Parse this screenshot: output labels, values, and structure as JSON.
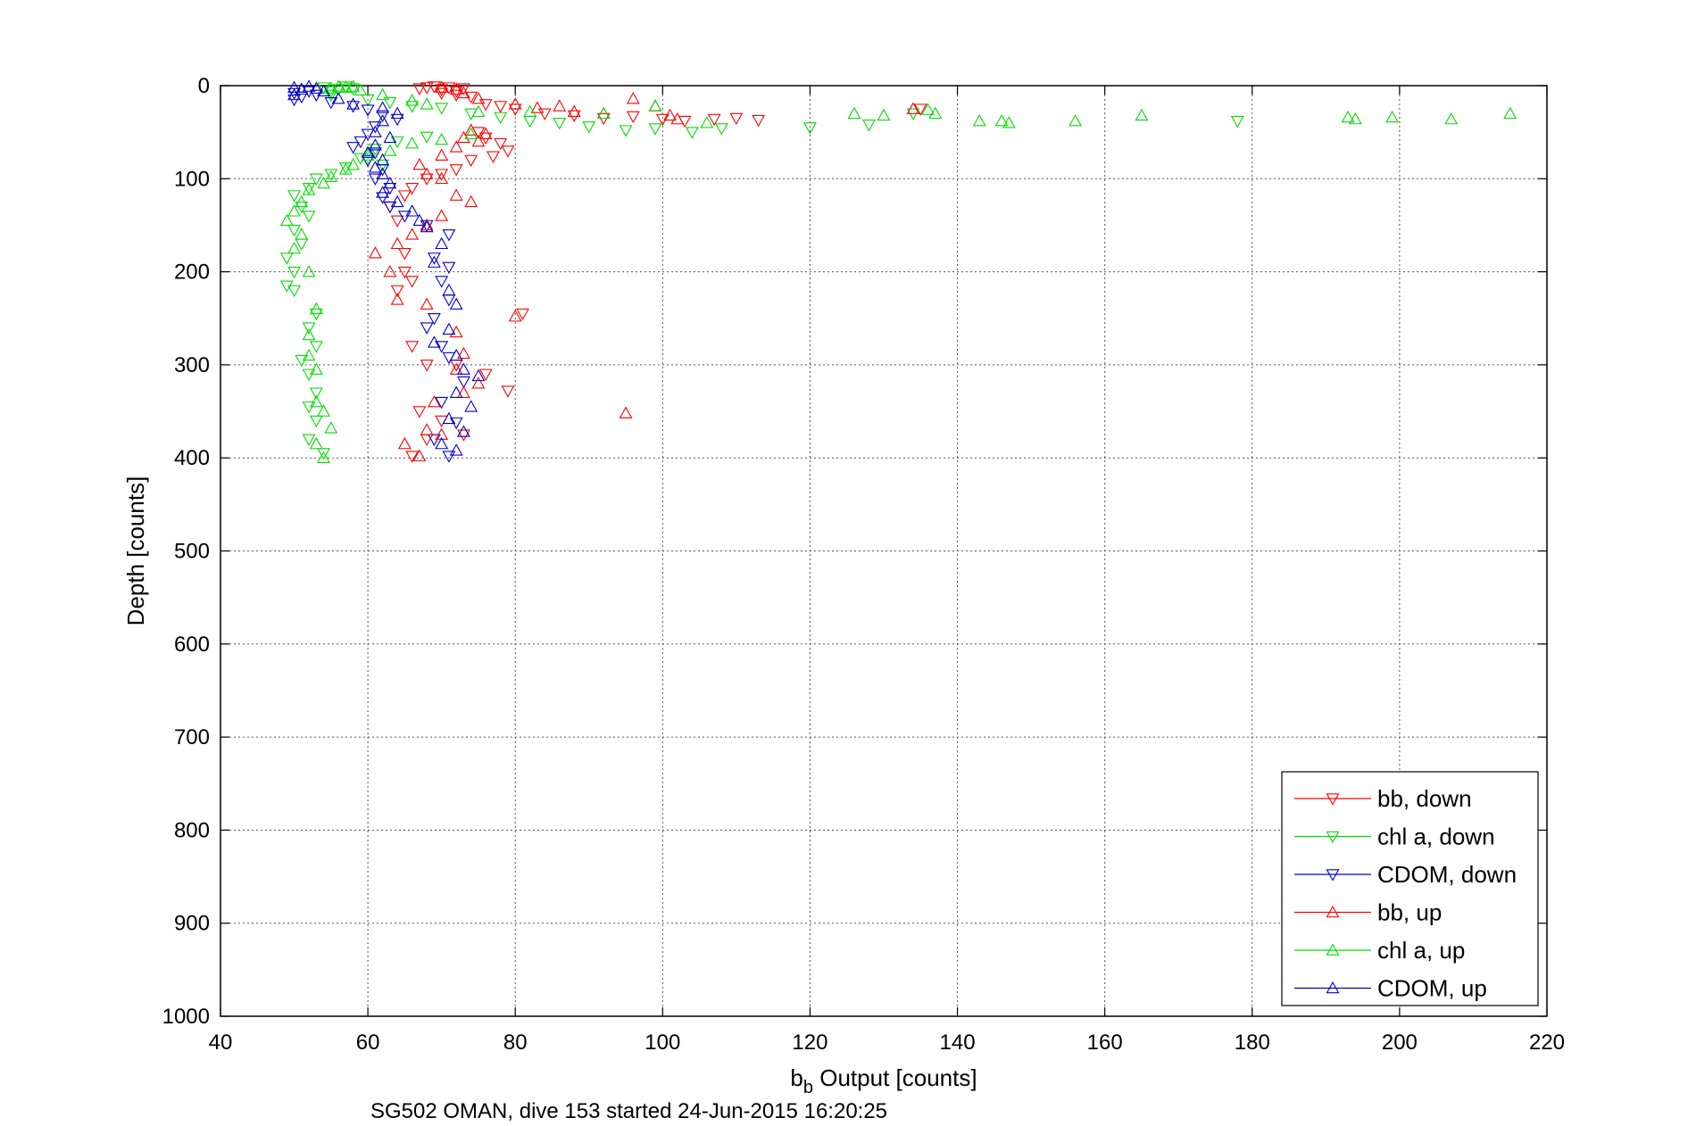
{
  "chart_data": {
    "type": "scatter",
    "xlabel_main": "b",
    "xlabel_sub": "b",
    "xlabel_rest": " Output [counts]",
    "ylabel": "Depth [counts]",
    "caption": "SG502 OMAN, dive 153 started 24-Jun-2015 16:20:25",
    "xlim": [
      40,
      220
    ],
    "ylim": [
      0,
      1000
    ],
    "y_reversed": true,
    "grid": true,
    "legend_position": "bottom-right",
    "x_ticks": [
      "40",
      "60",
      "80",
      "100",
      "120",
      "140",
      "160",
      "180",
      "200",
      "220"
    ],
    "y_ticks": [
      "0",
      "100",
      "200",
      "300",
      "400",
      "500",
      "600",
      "700",
      "800",
      "900",
      "1000"
    ],
    "series": [
      {
        "name": "bb, down",
        "color": "#ff0000",
        "marker": "triangle-down",
        "points": [
          [
            67,
            3
          ],
          [
            68,
            2
          ],
          [
            69,
            1
          ],
          [
            70,
            4
          ],
          [
            71,
            2
          ],
          [
            72,
            6
          ],
          [
            73,
            3
          ],
          [
            70,
            8
          ],
          [
            72,
            10
          ],
          [
            74,
            12
          ],
          [
            76,
            20
          ],
          [
            78,
            22
          ],
          [
            80,
            25
          ],
          [
            84,
            30
          ],
          [
            88,
            32
          ],
          [
            92,
            35
          ],
          [
            96,
            33
          ],
          [
            100,
            36
          ],
          [
            103,
            38
          ],
          [
            107,
            36
          ],
          [
            110,
            35
          ],
          [
            113,
            37
          ],
          [
            135,
            25
          ],
          [
            75,
            50
          ],
          [
            76,
            56
          ],
          [
            78,
            62
          ],
          [
            79,
            70
          ],
          [
            77,
            76
          ],
          [
            74,
            80
          ],
          [
            72,
            90
          ],
          [
            70,
            95
          ],
          [
            68,
            100
          ],
          [
            66,
            110
          ],
          [
            65,
            118
          ],
          [
            63,
            130
          ],
          [
            64,
            145
          ],
          [
            65,
            180
          ],
          [
            65,
            200
          ],
          [
            66,
            210
          ],
          [
            64,
            220
          ],
          [
            66,
            280
          ],
          [
            68,
            300
          ],
          [
            72,
            300
          ],
          [
            76,
            310
          ],
          [
            79,
            328
          ],
          [
            67,
            350
          ],
          [
            70,
            360
          ],
          [
            73,
            375
          ],
          [
            81,
            245
          ],
          [
            68,
            380
          ],
          [
            66,
            398
          ]
        ]
      },
      {
        "name": "chl a, down",
        "color": "#00dd00",
        "marker": "triangle-down",
        "points": [
          [
            54,
            2
          ],
          [
            55,
            6
          ],
          [
            56,
            4
          ],
          [
            57,
            1
          ],
          [
            58,
            3
          ],
          [
            55,
            10
          ],
          [
            60,
            15
          ],
          [
            63,
            18
          ],
          [
            66,
            22
          ],
          [
            70,
            24
          ],
          [
            74,
            30
          ],
          [
            78,
            34
          ],
          [
            82,
            38
          ],
          [
            86,
            40
          ],
          [
            90,
            44
          ],
          [
            95,
            48
          ],
          [
            99,
            46
          ],
          [
            104,
            50
          ],
          [
            108,
            46
          ],
          [
            120,
            45
          ],
          [
            128,
            42
          ],
          [
            134,
            30
          ],
          [
            178,
            38
          ],
          [
            68,
            55
          ],
          [
            64,
            60
          ],
          [
            61,
            68
          ],
          [
            59,
            78
          ],
          [
            57,
            88
          ],
          [
            55,
            95
          ],
          [
            53,
            100
          ],
          [
            52,
            110
          ],
          [
            50,
            118
          ],
          [
            51,
            130
          ],
          [
            52,
            140
          ],
          [
            50,
            155
          ],
          [
            51,
            170
          ],
          [
            49,
            185
          ],
          [
            50,
            200
          ],
          [
            49,
            215
          ],
          [
            50,
            220
          ],
          [
            53,
            245
          ],
          [
            52,
            260
          ],
          [
            53,
            280
          ],
          [
            51,
            295
          ],
          [
            52,
            310
          ],
          [
            53,
            330
          ],
          [
            52,
            345
          ],
          [
            53,
            360
          ],
          [
            52,
            380
          ],
          [
            54,
            395
          ],
          [
            60,
            80
          ],
          [
            62,
            85
          ]
        ]
      },
      {
        "name": "CDOM, down",
        "color": "#0000cc",
        "marker": "triangle-down",
        "points": [
          [
            50,
            8
          ],
          [
            51,
            12
          ],
          [
            52,
            6
          ],
          [
            53,
            10
          ],
          [
            50,
            15
          ],
          [
            55,
            18
          ],
          [
            58,
            22
          ],
          [
            60,
            26
          ],
          [
            62,
            32
          ],
          [
            64,
            36
          ],
          [
            61,
            44
          ],
          [
            60,
            52
          ],
          [
            59,
            60
          ],
          [
            58,
            66
          ],
          [
            61,
            72
          ],
          [
            60,
            80
          ],
          [
            62,
            90
          ],
          [
            61,
            100
          ],
          [
            63,
            110
          ],
          [
            62,
            120
          ],
          [
            63,
            130
          ],
          [
            65,
            140
          ],
          [
            68,
            150
          ],
          [
            71,
            160
          ],
          [
            69,
            185
          ],
          [
            71,
            195
          ],
          [
            70,
            210
          ],
          [
            71,
            230
          ],
          [
            69,
            250
          ],
          [
            68,
            260
          ],
          [
            70,
            280
          ],
          [
            71,
            292
          ],
          [
            73,
            318
          ],
          [
            70,
            340
          ],
          [
            72,
            362
          ],
          [
            69,
            380
          ],
          [
            71,
            398
          ]
        ]
      },
      {
        "name": "bb, up",
        "color": "#ff0000",
        "marker": "triangle-up",
        "points": [
          [
            70,
            2
          ],
          [
            72,
            4
          ],
          [
            73,
            8
          ],
          [
            75,
            14
          ],
          [
            80,
            20
          ],
          [
            83,
            24
          ],
          [
            86,
            22
          ],
          [
            88,
            28
          ],
          [
            92,
            30
          ],
          [
            96,
            14
          ],
          [
            99,
            22
          ],
          [
            101,
            32
          ],
          [
            102,
            36
          ],
          [
            134,
            25
          ],
          [
            74,
            48
          ],
          [
            76,
            52
          ],
          [
            73,
            56
          ],
          [
            75,
            60
          ],
          [
            72,
            66
          ],
          [
            70,
            75
          ],
          [
            67,
            85
          ],
          [
            68,
            95
          ],
          [
            70,
            100
          ],
          [
            72,
            118
          ],
          [
            74,
            125
          ],
          [
            70,
            140
          ],
          [
            68,
            150
          ],
          [
            66,
            160
          ],
          [
            64,
            170
          ],
          [
            61,
            180
          ],
          [
            63,
            200
          ],
          [
            64,
            230
          ],
          [
            68,
            235
          ],
          [
            80,
            248
          ],
          [
            72,
            265
          ],
          [
            73,
            288
          ],
          [
            72,
            305
          ],
          [
            75,
            320
          ],
          [
            73,
            330
          ],
          [
            69,
            340
          ],
          [
            95,
            352
          ],
          [
            68,
            370
          ],
          [
            70,
            375
          ],
          [
            65,
            385
          ],
          [
            67,
            398
          ]
        ]
      },
      {
        "name": "chl a, up",
        "color": "#00dd00",
        "marker": "triangle-up",
        "points": [
          [
            56,
            1
          ],
          [
            57,
            2
          ],
          [
            55,
            3
          ],
          [
            58,
            1
          ],
          [
            59,
            5
          ],
          [
            62,
            10
          ],
          [
            66,
            16
          ],
          [
            68,
            20
          ],
          [
            75,
            28
          ],
          [
            82,
            28
          ],
          [
            92,
            30
          ],
          [
            99,
            22
          ],
          [
            106,
            40
          ],
          [
            126,
            30
          ],
          [
            130,
            32
          ],
          [
            136,
            26
          ],
          [
            137,
            30
          ],
          [
            143,
            38
          ],
          [
            146,
            38
          ],
          [
            147,
            40
          ],
          [
            156,
            38
          ],
          [
            165,
            32
          ],
          [
            193,
            34
          ],
          [
            194,
            36
          ],
          [
            199,
            34
          ],
          [
            207,
            36
          ],
          [
            215,
            30
          ],
          [
            74,
            52
          ],
          [
            70,
            58
          ],
          [
            66,
            62
          ],
          [
            63,
            70
          ],
          [
            60,
            75
          ],
          [
            58,
            85
          ],
          [
            57,
            90
          ],
          [
            55,
            98
          ],
          [
            54,
            105
          ],
          [
            52,
            112
          ],
          [
            51,
            125
          ],
          [
            50,
            135
          ],
          [
            49,
            145
          ],
          [
            51,
            160
          ],
          [
            50,
            175
          ],
          [
            52,
            200
          ],
          [
            53,
            240
          ],
          [
            52,
            268
          ],
          [
            52,
            290
          ],
          [
            53,
            305
          ],
          [
            53,
            340
          ],
          [
            54,
            350
          ],
          [
            55,
            368
          ],
          [
            53,
            385
          ],
          [
            54,
            400
          ]
        ]
      },
      {
        "name": "CDOM, up",
        "color": "#0000cc",
        "marker": "triangle-up",
        "points": [
          [
            50,
            2
          ],
          [
            51,
            4
          ],
          [
            52,
            1
          ],
          [
            53,
            3
          ],
          [
            54,
            6
          ],
          [
            50,
            10
          ],
          [
            56,
            14
          ],
          [
            58,
            20
          ],
          [
            62,
            24
          ],
          [
            64,
            30
          ],
          [
            62,
            38
          ],
          [
            61,
            50
          ],
          [
            63,
            56
          ],
          [
            61,
            64
          ],
          [
            60,
            72
          ],
          [
            62,
            80
          ],
          [
            61,
            88
          ],
          [
            62,
            95
          ],
          [
            63,
            105
          ],
          [
            62,
            115
          ],
          [
            64,
            125
          ],
          [
            66,
            135
          ],
          [
            67,
            145
          ],
          [
            68,
            152
          ],
          [
            70,
            170
          ],
          [
            69,
            190
          ],
          [
            71,
            220
          ],
          [
            72,
            235
          ],
          [
            71,
            262
          ],
          [
            69,
            276
          ],
          [
            72,
            290
          ],
          [
            73,
            305
          ],
          [
            75,
            312
          ],
          [
            72,
            330
          ],
          [
            74,
            345
          ],
          [
            71,
            358
          ],
          [
            73,
            372
          ],
          [
            70,
            385
          ],
          [
            72,
            392
          ]
        ]
      }
    ]
  }
}
